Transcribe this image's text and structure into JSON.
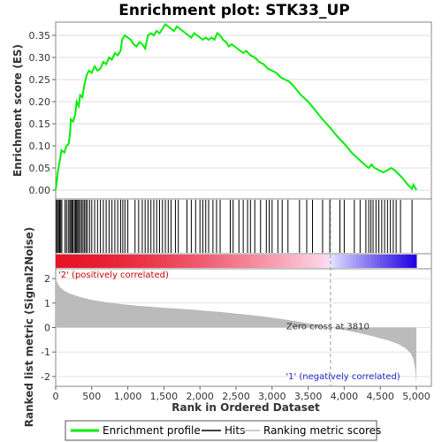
{
  "chart_data": {
    "type": "line",
    "title": "Enrichment plot: STK33_UP",
    "xlabel": "Rank in Ordered Dataset",
    "ylabel_top": "Enrichment score (ES)",
    "ylabel_bottom": "Ranked list metric (Signal2Noise)",
    "x_ticks": [
      "0",
      "500",
      "1,000",
      "1,500",
      "2,000",
      "2,500",
      "3,000",
      "3,500",
      "4,000",
      "4,500",
      "5,000"
    ],
    "es_ticks": [
      "0.00",
      "0.05",
      "0.10",
      "0.15",
      "0.20",
      "0.25",
      "0.30",
      "0.35"
    ],
    "metric_ticks": [
      "2",
      "1",
      "0",
      "-1",
      "-2"
    ],
    "xlim": [
      0,
      5000
    ],
    "es_ylim": [
      -0.02,
      0.38
    ],
    "metric_ylim": [
      -2.4,
      2.4
    ],
    "zero_cross_label": "Zero cross at 3810",
    "zero_cross": 3810,
    "pos_label": "'2' (positively correlated)",
    "neg_label": "'1' (negatively correlated)",
    "n_genes": 5000,
    "colors": {
      "es_line": "#00ee00",
      "hits": "#000000",
      "metric_fill": "#bbbbbb",
      "pos_label": "#cc0000",
      "neg_label": "#2222cc",
      "zero_line": "#999999"
    },
    "es_curve": [
      [
        0,
        0.0
      ],
      [
        30,
        0.04
      ],
      [
        60,
        0.07
      ],
      [
        80,
        0.09
      ],
      [
        120,
        0.085
      ],
      [
        150,
        0.1
      ],
      [
        180,
        0.105
      ],
      [
        200,
        0.13
      ],
      [
        210,
        0.16
      ],
      [
        240,
        0.155
      ],
      [
        270,
        0.17
      ],
      [
        290,
        0.2
      ],
      [
        320,
        0.19
      ],
      [
        340,
        0.215
      ],
      [
        370,
        0.21
      ],
      [
        400,
        0.24
      ],
      [
        430,
        0.26
      ],
      [
        460,
        0.27
      ],
      [
        500,
        0.265
      ],
      [
        540,
        0.28
      ],
      [
        580,
        0.27
      ],
      [
        620,
        0.275
      ],
      [
        660,
        0.29
      ],
      [
        700,
        0.285
      ],
      [
        740,
        0.3
      ],
      [
        780,
        0.295
      ],
      [
        820,
        0.31
      ],
      [
        860,
        0.305
      ],
      [
        900,
        0.315
      ],
      [
        920,
        0.34
      ],
      [
        960,
        0.35
      ],
      [
        1000,
        0.345
      ],
      [
        1040,
        0.34
      ],
      [
        1080,
        0.33
      ],
      [
        1120,
        0.325
      ],
      [
        1160,
        0.335
      ],
      [
        1200,
        0.33
      ],
      [
        1240,
        0.32
      ],
      [
        1280,
        0.35
      ],
      [
        1320,
        0.355
      ],
      [
        1360,
        0.35
      ],
      [
        1400,
        0.36
      ],
      [
        1440,
        0.355
      ],
      [
        1480,
        0.365
      ],
      [
        1520,
        0.375
      ],
      [
        1560,
        0.37
      ],
      [
        1600,
        0.365
      ],
      [
        1640,
        0.36
      ],
      [
        1680,
        0.37
      ],
      [
        1720,
        0.365
      ],
      [
        1760,
        0.36
      ],
      [
        1800,
        0.355
      ],
      [
        1840,
        0.35
      ],
      [
        1880,
        0.345
      ],
      [
        1920,
        0.355
      ],
      [
        1960,
        0.35
      ],
      [
        2000,
        0.345
      ],
      [
        2040,
        0.34
      ],
      [
        2080,
        0.345
      ],
      [
        2120,
        0.34
      ],
      [
        2160,
        0.345
      ],
      [
        2200,
        0.34
      ],
      [
        2240,
        0.355
      ],
      [
        2280,
        0.35
      ],
      [
        2320,
        0.34
      ],
      [
        2360,
        0.335
      ],
      [
        2400,
        0.325
      ],
      [
        2440,
        0.33
      ],
      [
        2480,
        0.325
      ],
      [
        2520,
        0.32
      ],
      [
        2560,
        0.315
      ],
      [
        2600,
        0.31
      ],
      [
        2640,
        0.315
      ],
      [
        2700,
        0.305
      ],
      [
        2760,
        0.3
      ],
      [
        2820,
        0.29
      ],
      [
        2880,
        0.285
      ],
      [
        2940,
        0.275
      ],
      [
        3000,
        0.27
      ],
      [
        3060,
        0.265
      ],
      [
        3120,
        0.255
      ],
      [
        3180,
        0.25
      ],
      [
        3240,
        0.245
      ],
      [
        3300,
        0.235
      ],
      [
        3400,
        0.215
      ],
      [
        3500,
        0.2
      ],
      [
        3600,
        0.18
      ],
      [
        3700,
        0.16
      ],
      [
        3810,
        0.14
      ],
      [
        3900,
        0.122
      ],
      [
        4000,
        0.105
      ],
      [
        4100,
        0.085
      ],
      [
        4200,
        0.07
      ],
      [
        4280,
        0.058
      ],
      [
        4340,
        0.05
      ],
      [
        4380,
        0.058
      ],
      [
        4420,
        0.05
      ],
      [
        4480,
        0.045
      ],
      [
        4540,
        0.04
      ],
      [
        4600,
        0.045
      ],
      [
        4650,
        0.05
      ],
      [
        4700,
        0.045
      ],
      [
        4760,
        0.035
      ],
      [
        4820,
        0.025
      ],
      [
        4880,
        0.012
      ],
      [
        4940,
        0.003
      ],
      [
        4960,
        0.012
      ],
      [
        4990,
        0.003
      ],
      [
        5000,
        0.0
      ]
    ],
    "hits": [
      10,
      25,
      40,
      55,
      70,
      85,
      130,
      150,
      175,
      195,
      210,
      225,
      240,
      260,
      275,
      290,
      305,
      320,
      340,
      360,
      380,
      400,
      420,
      440,
      470,
      500,
      540,
      580,
      620,
      660,
      700,
      740,
      780,
      820,
      860,
      900,
      930,
      960,
      1000,
      1100,
      1150,
      1200,
      1240,
      1280,
      1320,
      1360,
      1400,
      1440,
      1480,
      1520,
      1560,
      1600,
      1660,
      1700,
      1820,
      1880,
      1940,
      2000,
      2040,
      2080,
      2120,
      2180,
      2230,
      2280,
      2420,
      2460,
      2540,
      2600,
      2660,
      2700,
      2760,
      2840,
      2920,
      2960,
      3000,
      3080,
      3140,
      3220,
      3380,
      3480,
      3560,
      3700,
      3800,
      3940,
      4000,
      4140,
      4220,
      4300,
      4340,
      4370,
      4400,
      4440,
      4480,
      4520,
      4560,
      4600,
      4640,
      4680,
      4720,
      4780,
      4940
    ],
    "metric_curve": [
      [
        0,
        2.1
      ],
      [
        20,
        1.85
      ],
      [
        60,
        1.65
      ],
      [
        120,
        1.5
      ],
      [
        200,
        1.38
      ],
      [
        300,
        1.28
      ],
      [
        400,
        1.2
      ],
      [
        500,
        1.13
      ],
      [
        700,
        1.03
      ],
      [
        900,
        0.96
      ],
      [
        1100,
        0.9
      ],
      [
        1300,
        0.85
      ],
      [
        1500,
        0.81
      ],
      [
        1700,
        0.77
      ],
      [
        1900,
        0.73
      ],
      [
        2100,
        0.68
      ],
      [
        2300,
        0.63
      ],
      [
        2500,
        0.57
      ],
      [
        2700,
        0.51
      ],
      [
        2900,
        0.44
      ],
      [
        3100,
        0.36
      ],
      [
        3300,
        0.27
      ],
      [
        3500,
        0.17
      ],
      [
        3700,
        0.06
      ],
      [
        3810,
        0.0
      ],
      [
        4000,
        -0.1
      ],
      [
        4200,
        -0.22
      ],
      [
        4400,
        -0.36
      ],
      [
        4600,
        -0.52
      ],
      [
        4750,
        -0.68
      ],
      [
        4850,
        -0.85
      ],
      [
        4920,
        -1.05
      ],
      [
        4960,
        -1.3
      ],
      [
        4985,
        -1.7
      ],
      [
        5000,
        -2.3
      ]
    ]
  },
  "legend": {
    "items": [
      {
        "label": "Enrichment profile",
        "color": "#00ee00",
        "kind": "line"
      },
      {
        "label": "Hits",
        "color": "#000000",
        "kind": "line"
      },
      {
        "label": "Ranking metric scores",
        "color": "#bbbbbb",
        "kind": "line"
      }
    ]
  }
}
